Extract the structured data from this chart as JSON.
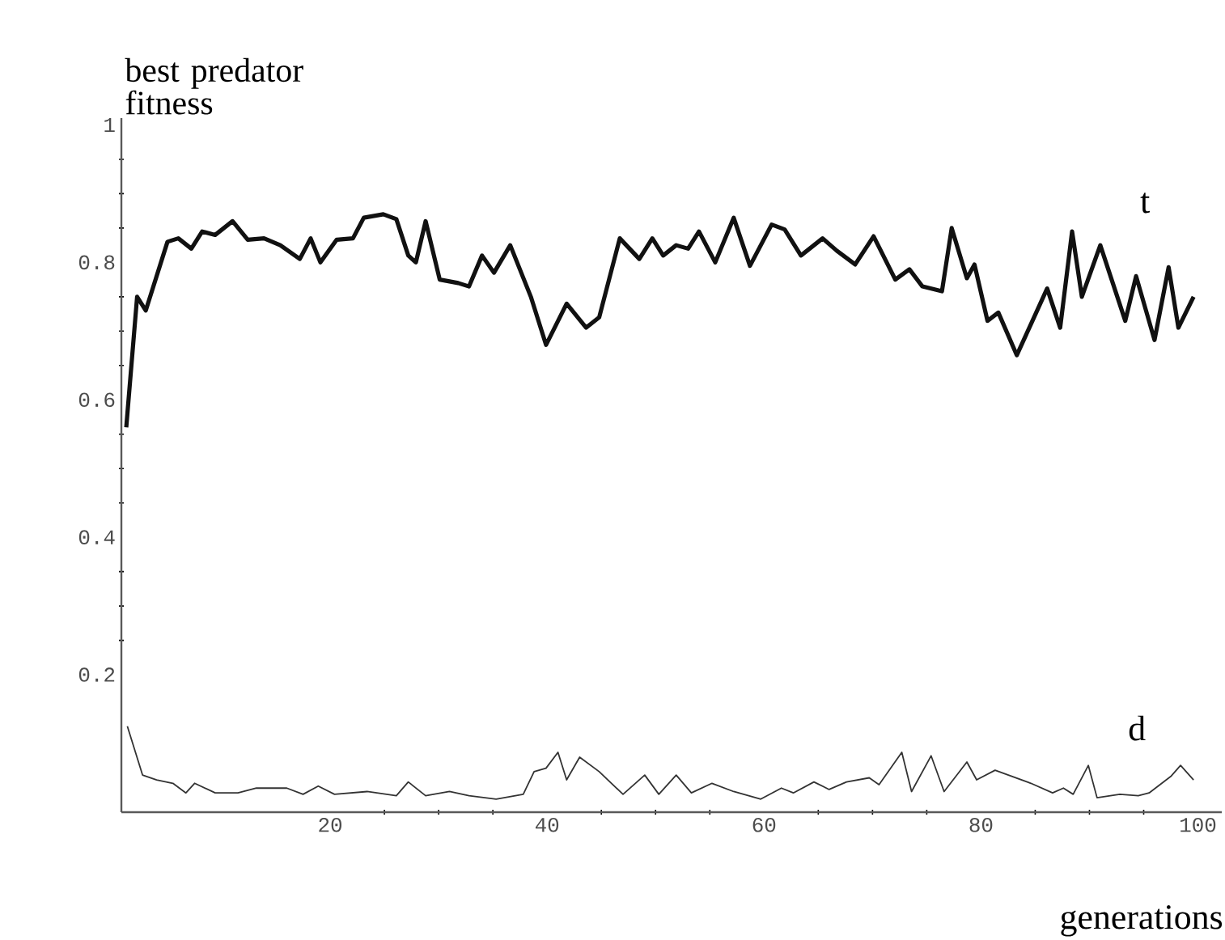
{
  "chart_data": {
    "type": "line",
    "ylabel": "best predator fitness",
    "xlabel": "generations",
    "xlim": [
      0.75,
      102.2
    ],
    "ylim": [
      0,
      1.01
    ],
    "xticks": [
      20,
      40,
      60,
      80,
      100
    ],
    "yticks": [
      0.2,
      0.4,
      0.6,
      0.8,
      1
    ],
    "grid": false,
    "legend": false,
    "series": [
      {
        "name": "t",
        "color": "#111111",
        "x": [
          1.2,
          2.2,
          3,
          5,
          6,
          7.2,
          8.2,
          9.4,
          11,
          12.4,
          13.9,
          15.4,
          17.2,
          18.2,
          19.1,
          20.6,
          22.1,
          23.1,
          24.9,
          26.1,
          27.2,
          27.9,
          28.8,
          30.1,
          31.8,
          32.8,
          34,
          35.1,
          36.6,
          38.5,
          39.9,
          41.8,
          43.6,
          44.8,
          46.7,
          48.5,
          49.7,
          50.7,
          51.9,
          53,
          54,
          55.5,
          57.2,
          58.7,
          60.7,
          61.9,
          63.4,
          65.4,
          66.7,
          68.4,
          70.1,
          72.1,
          73.4,
          74.6,
          76.4,
          77.3,
          78.7,
          79.4,
          80.6,
          81.6,
          83.3,
          84.6,
          86.1,
          87.3,
          88.4,
          89.3,
          91,
          93.3,
          94.3,
          96,
          97.3,
          98.2,
          99.6
        ],
        "values": [
          0.56,
          0.75,
          0.73,
          0.83,
          0.835,
          0.82,
          0.845,
          0.84,
          0.86,
          0.833,
          0.835,
          0.825,
          0.805,
          0.835,
          0.8,
          0.833,
          0.835,
          0.865,
          0.87,
          0.863,
          0.81,
          0.8,
          0.86,
          0.775,
          0.77,
          0.765,
          0.81,
          0.785,
          0.825,
          0.75,
          0.68,
          0.74,
          0.705,
          0.72,
          0.835,
          0.805,
          0.835,
          0.81,
          0.825,
          0.82,
          0.845,
          0.8,
          0.865,
          0.795,
          0.855,
          0.848,
          0.81,
          0.835,
          0.817,
          0.797,
          0.838,
          0.775,
          0.79,
          0.765,
          0.758,
          0.85,
          0.777,
          0.797,
          0.715,
          0.727,
          0.665,
          0.71,
          0.762,
          0.705,
          0.845,
          0.75,
          0.825,
          0.715,
          0.78,
          0.687,
          0.793,
          0.705,
          0.75
        ]
      },
      {
        "name": "d",
        "color": "#333333",
        "x": [
          1.3,
          2.7,
          4,
          5.5,
          6.7,
          7.5,
          9.4,
          11.5,
          13.2,
          16,
          17.5,
          18.9,
          20.4,
          23.4,
          26.1,
          27.2,
          28.8,
          31,
          32.8,
          35.3,
          37.8,
          38.8,
          39.9,
          41,
          41.8,
          43,
          44.8,
          47,
          49,
          50.3,
          51.9,
          53.3,
          55.2,
          57.2,
          59.7,
          61.6,
          62.7,
          64.6,
          66,
          67.6,
          69.7,
          70.6,
          72.7,
          73.6,
          75.4,
          76.6,
          78.7,
          79.6,
          81.3,
          84.6,
          86.6,
          87.6,
          88.5,
          89.9,
          90.7,
          92.8,
          94.5,
          95.5,
          97.5,
          98.4,
          99.6
        ],
        "values": [
          0.125,
          0.054,
          0.047,
          0.042,
          0.028,
          0.042,
          0.028,
          0.028,
          0.035,
          0.035,
          0.026,
          0.038,
          0.026,
          0.03,
          0.024,
          0.044,
          0.024,
          0.03,
          0.024,
          0.019,
          0.026,
          0.059,
          0.064,
          0.087,
          0.047,
          0.08,
          0.059,
          0.026,
          0.054,
          0.026,
          0.054,
          0.028,
          0.042,
          0.03,
          0.019,
          0.035,
          0.028,
          0.044,
          0.033,
          0.044,
          0.05,
          0.04,
          0.087,
          0.03,
          0.082,
          0.03,
          0.073,
          0.047,
          0.061,
          0.042,
          0.028,
          0.035,
          0.026,
          0.068,
          0.021,
          0.026,
          0.024,
          0.028,
          0.052,
          0.068,
          0.047
        ]
      }
    ]
  }
}
